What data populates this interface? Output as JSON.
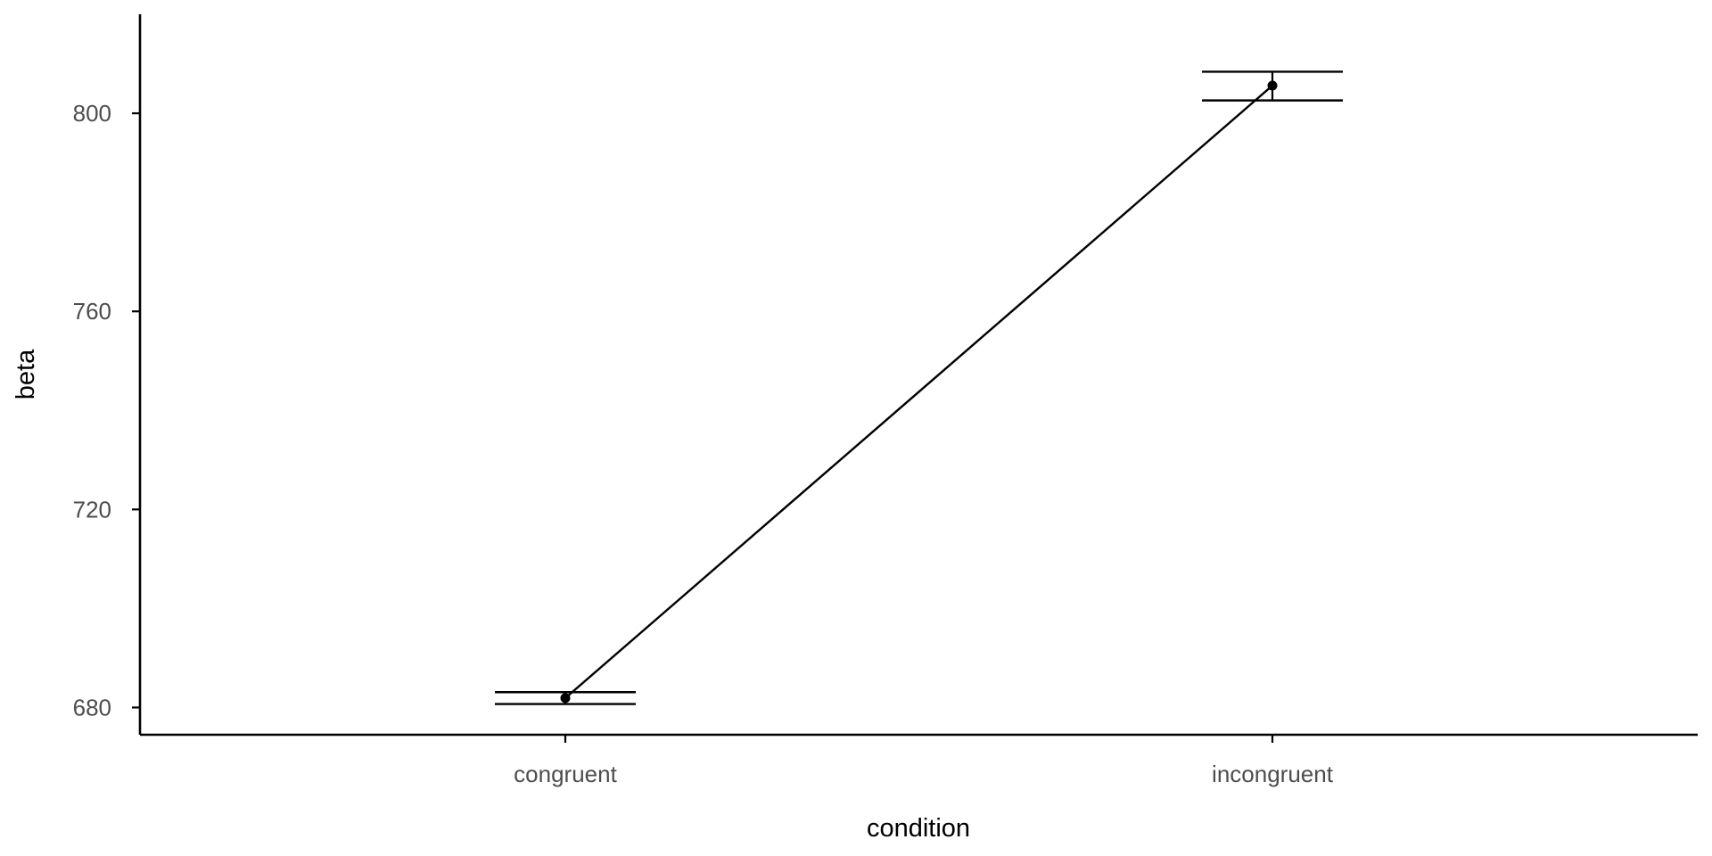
{
  "chart_data": {
    "type": "line",
    "title": "",
    "xlabel": "condition",
    "ylabel": "beta",
    "categories": [
      "congruent",
      "incongruent"
    ],
    "series": [
      {
        "values": [
          681.9,
          805.6
        ],
        "error_low": [
          680.7,
          802.6
        ],
        "error_high": [
          683.1,
          808.4
        ]
      }
    ],
    "yticks": [
      680,
      720,
      760,
      800
    ],
    "ylim": [
      674.5,
      820.0
    ],
    "grid": false,
    "legend": "none",
    "colors": {
      "line": "#000000",
      "axis": "#000000",
      "tick_label": "#4d4d4d"
    }
  }
}
